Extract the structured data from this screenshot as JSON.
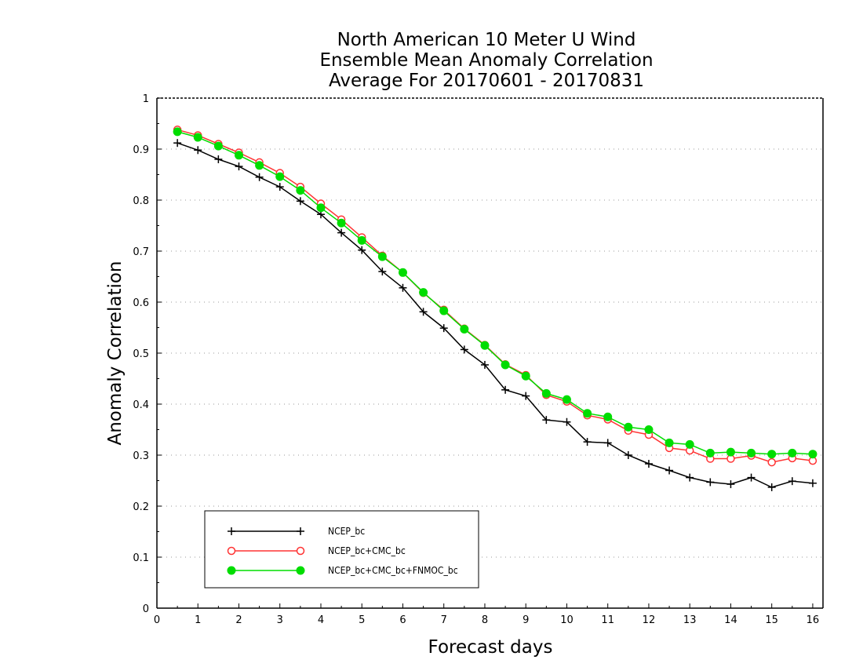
{
  "chart_data": {
    "type": "line",
    "title_lines": [
      "North American 10 Meter U Wind",
      "Ensemble Mean Anomaly Correlation",
      "Average For 20170601 - 20170831"
    ],
    "xlabel": "Forecast days",
    "ylabel": "Anomaly Correlation",
    "xlim": [
      0,
      16.25
    ],
    "ylim": [
      0,
      1
    ],
    "xticks": [
      0,
      1,
      2,
      3,
      4,
      5,
      6,
      7,
      8,
      9,
      10,
      11,
      12,
      13,
      14,
      15,
      16
    ],
    "xtick_labels": [
      "0",
      "1",
      "2",
      "3",
      "4",
      "5",
      "6",
      "7",
      "8",
      "9",
      "10",
      "11",
      "12",
      "13",
      "14",
      "15",
      "16"
    ],
    "yticks": [
      0,
      0.1,
      0.2,
      0.3,
      0.4,
      0.5,
      0.6,
      0.7,
      0.8,
      0.9,
      1
    ],
    "ytick_labels": [
      "0",
      "0.1",
      "0.2",
      "0.3",
      "0.4",
      "0.5",
      "0.6",
      "0.7",
      "0.8",
      "0.9",
      "1"
    ],
    "grid": "horizontal-dotted",
    "legend_position": "bottom-left",
    "x": [
      0.5,
      1,
      1.5,
      2,
      2.5,
      3,
      3.5,
      4,
      4.5,
      5,
      5.5,
      6,
      6.5,
      7,
      7.5,
      8,
      8.5,
      9,
      9.5,
      10,
      10.5,
      11,
      11.5,
      12,
      12.5,
      13,
      13.5,
      14,
      14.5,
      15,
      15.5,
      16
    ],
    "series": [
      {
        "name": "NCEP_bc",
        "color": "#000000",
        "marker": "plus",
        "values": [
          0.912,
          0.898,
          0.88,
          0.866,
          0.845,
          0.826,
          0.798,
          0.772,
          0.736,
          0.702,
          0.66,
          0.628,
          0.581,
          0.549,
          0.507,
          0.477,
          0.428,
          0.416,
          0.369,
          0.365,
          0.326,
          0.324,
          0.3,
          0.283,
          0.27,
          0.256,
          0.247,
          0.243,
          0.256,
          0.237,
          0.249,
          0.245
        ]
      },
      {
        "name": "NCEP_bc+CMC_bc",
        "color": "#ff3333",
        "marker": "open-circle",
        "values": [
          0.938,
          0.927,
          0.91,
          0.893,
          0.874,
          0.853,
          0.826,
          0.793,
          0.762,
          0.727,
          0.691,
          0.658,
          0.618,
          0.585,
          0.548,
          0.516,
          0.478,
          0.457,
          0.418,
          0.405,
          0.378,
          0.37,
          0.348,
          0.34,
          0.314,
          0.309,
          0.293,
          0.293,
          0.299,
          0.286,
          0.294,
          0.289
        ]
      },
      {
        "name": "NCEP_bc+CMC_bc+FNMOC_bc",
        "color": "#00dd00",
        "marker": "filled-circle",
        "values": [
          0.934,
          0.923,
          0.906,
          0.888,
          0.868,
          0.846,
          0.819,
          0.785,
          0.755,
          0.721,
          0.689,
          0.658,
          0.619,
          0.583,
          0.547,
          0.515,
          0.477,
          0.455,
          0.421,
          0.409,
          0.382,
          0.375,
          0.355,
          0.35,
          0.324,
          0.321,
          0.304,
          0.306,
          0.304,
          0.302,
          0.304,
          0.302
        ]
      }
    ]
  }
}
